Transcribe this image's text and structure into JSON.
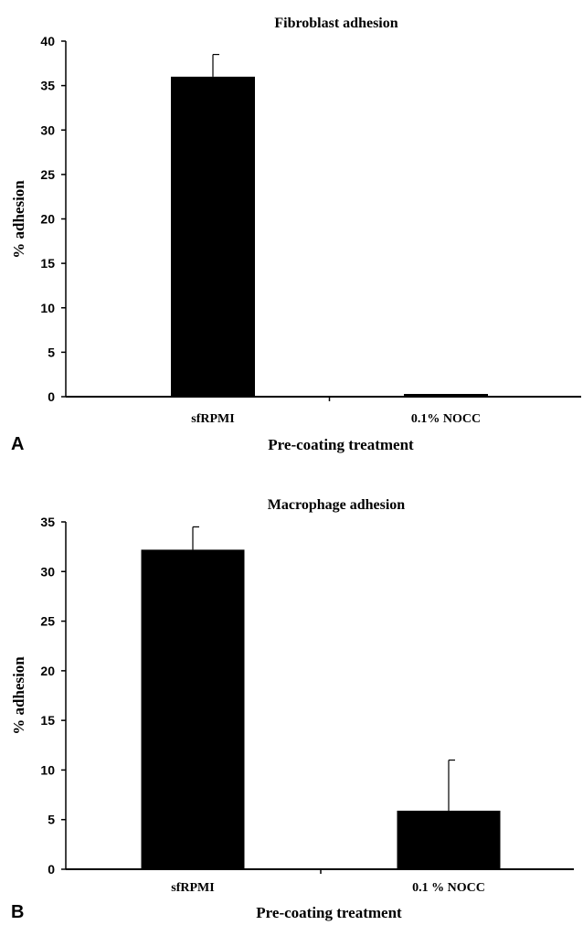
{
  "chart_data": [
    {
      "type": "bar",
      "panel_label": "A",
      "title": "Fibroblast adhesion",
      "xlabel": "Pre-coating treatment",
      "ylabel": "% adhesion",
      "categories": [
        "sfRPMI",
        "0.1% NOCC"
      ],
      "values": [
        36,
        0.3
      ],
      "error_plus": [
        2.5,
        0
      ],
      "ylim": [
        0,
        40
      ],
      "yticks": [
        0,
        5,
        10,
        15,
        20,
        25,
        30,
        35,
        40
      ],
      "bar_color": "#000000"
    },
    {
      "type": "bar",
      "panel_label": "B",
      "title": "Macrophage adhesion",
      "xlabel": "Pre-coating treatment",
      "ylabel": "% adhesion",
      "categories": [
        "sfRPMI",
        "0.1 % NOCC"
      ],
      "values": [
        32.2,
        5.9
      ],
      "error_plus": [
        2.3,
        5.1
      ],
      "ylim": [
        0,
        35
      ],
      "yticks": [
        0,
        5,
        10,
        15,
        20,
        25,
        30,
        35
      ],
      "bar_color": "#000000"
    }
  ]
}
